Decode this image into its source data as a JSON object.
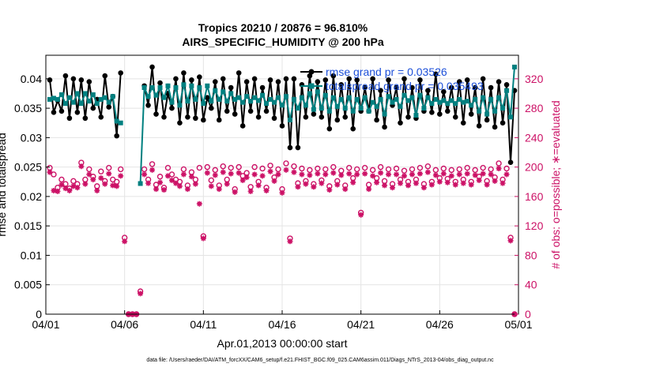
{
  "chart_data": {
    "type": "line",
    "title": "Tropics 20210 / 20876 = 96.810%",
    "subtitle": "AIRS_SPECIFIC_HUMIDITY @ 200 hPa",
    "xlabel": "Apr.01,2013 00:00:00 start",
    "ylabel_left": "rmse and totalspread",
    "ylabel_right": "# of obs: o=possible; ∗=evaluated",
    "footer": "data file: /Users/raeder/DAI/ATM_forcXX/CAM6_setup/f.e21.FHIST_BGC.f09_025.CAM6assim.011/Diags_NTrS_2013-04/obs_diag_output.nc",
    "x_range": [
      0,
      30
    ],
    "ylim_left": [
      0,
      0.044
    ],
    "ylim_right": [
      0,
      352
    ],
    "x_tick_values": [
      0,
      5,
      10,
      15,
      20,
      25,
      30
    ],
    "x_tick_labels": [
      "04/01",
      "04/06",
      "04/11",
      "04/16",
      "04/21",
      "04/26",
      "05/01"
    ],
    "left_tick_values": [
      0,
      0.005,
      0.01,
      0.015,
      0.02,
      0.025,
      0.03,
      0.035,
      0.04
    ],
    "left_tick_labels": [
      "0",
      "0.005",
      "0.01",
      "0.015",
      "0.02",
      "0.025",
      "0.03",
      "0.035",
      "0.04"
    ],
    "right_tick_values": [
      0,
      40,
      80,
      120,
      160,
      200,
      240,
      280,
      320
    ],
    "right_tick_labels": [
      "0",
      "40",
      "80",
      "120",
      "160",
      "200",
      "240",
      "280",
      "320"
    ],
    "grid": true,
    "legend_position": "top-right",
    "x": [
      0.25,
      0.5,
      0.75,
      1,
      1.25,
      1.5,
      1.75,
      2,
      2.25,
      2.5,
      2.75,
      3,
      3.25,
      3.5,
      3.75,
      4,
      4.25,
      4.5,
      4.75,
      5,
      5.25,
      5.5,
      5.75,
      6,
      6.25,
      6.5,
      6.75,
      7,
      7.25,
      7.5,
      7.75,
      8,
      8.25,
      8.5,
      8.75,
      9,
      9.25,
      9.5,
      9.75,
      10,
      10.25,
      10.5,
      10.75,
      11,
      11.25,
      11.5,
      11.75,
      12,
      12.25,
      12.5,
      12.75,
      13,
      13.25,
      13.5,
      13.75,
      14,
      14.25,
      14.5,
      14.75,
      15,
      15.25,
      15.5,
      15.75,
      16,
      16.25,
      16.5,
      16.75,
      17,
      17.25,
      17.5,
      17.75,
      18,
      18.25,
      18.5,
      18.75,
      19,
      19.25,
      19.5,
      19.75,
      20,
      20.25,
      20.5,
      20.75,
      21,
      21.25,
      21.5,
      21.75,
      22,
      22.25,
      22.5,
      22.75,
      23,
      23.25,
      23.5,
      23.75,
      24,
      24.25,
      24.5,
      24.75,
      25,
      25.25,
      25.5,
      25.75,
      26,
      26.25,
      26.5,
      26.75,
      27,
      27.25,
      27.5,
      27.75,
      28,
      28.25,
      28.5,
      28.75,
      29,
      29.25,
      29.5,
      29.75
    ],
    "series": [
      {
        "name": "rmse",
        "legend": "rmse grand pr = 0.03526",
        "color": "#000000",
        "values": [
          0.0398,
          0.0343,
          0.0363,
          0.0345,
          0.0405,
          0.0333,
          0.04,
          0.0343,
          0.0398,
          0.0333,
          0.0395,
          0.035,
          0.0365,
          0.0335,
          0.0405,
          0.0352,
          0.037,
          0.0303,
          0.041,
          null,
          null,
          null,
          null,
          null,
          0.0388,
          0.0355,
          0.042,
          0.034,
          0.0393,
          0.0335,
          0.0375,
          0.035,
          0.04,
          0.0325,
          0.041,
          0.0335,
          0.0398,
          0.0333,
          0.0403,
          0.033,
          0.0368,
          0.035,
          0.0395,
          0.033,
          0.04,
          0.0345,
          0.0385,
          0.034,
          0.041,
          0.032,
          0.0395,
          0.0345,
          0.04,
          0.0335,
          0.0385,
          0.0345,
          0.0398,
          0.0333,
          0.0395,
          0.032,
          0.04,
          0.0283,
          0.04,
          0.0283,
          0.039,
          0.0335,
          0.0405,
          0.034,
          0.0395,
          0.0335,
          0.0398,
          0.0315,
          0.0405,
          0.033,
          0.039,
          0.0335,
          0.04,
          0.0315,
          0.0398,
          0.0345,
          0.0385,
          0.0345,
          0.04,
          0.033,
          0.038,
          0.0318,
          0.0398,
          0.0355,
          0.0385,
          0.0325,
          0.04,
          0.0335,
          0.0385,
          0.0333,
          0.0398,
          0.0345,
          0.038,
          0.0343,
          0.0408,
          0.034,
          0.0378,
          0.0345,
          0.0385,
          0.0335,
          0.0395,
          0.0325,
          0.0398,
          0.034,
          0.0385,
          0.032,
          0.04,
          0.033,
          0.0385,
          0.0318,
          0.0395,
          0.0325,
          0.039,
          0.0258,
          0.038
        ]
      },
      {
        "name": "totalspread",
        "legend": "totalspread grand pr = 0.035493",
        "color": "#008080",
        "values": [
          0.0365,
          0.0367,
          0.0365,
          0.0373,
          0.0358,
          0.0368,
          0.036,
          0.0375,
          0.0358,
          0.0375,
          0.0362,
          0.0373,
          0.0358,
          0.0365,
          0.0368,
          0.036,
          0.037,
          0.0328,
          0.0325,
          null,
          null,
          null,
          null,
          0.0222,
          0.0385,
          0.037,
          0.0385,
          0.0372,
          0.0385,
          0.0368,
          0.0388,
          0.036,
          0.0385,
          0.0355,
          0.039,
          0.0362,
          0.0388,
          0.0365,
          0.0385,
          0.0358,
          0.0388,
          0.0362,
          0.038,
          0.0365,
          0.0378,
          0.0362,
          0.0375,
          0.0365,
          0.0368,
          0.036,
          0.037,
          0.0362,
          0.0368,
          0.0363,
          0.0372,
          0.0358,
          0.0365,
          0.036,
          0.0368,
          0.0355,
          0.037,
          0.033,
          0.0365,
          0.035,
          0.0368,
          0.0355,
          0.0375,
          0.0348,
          0.0378,
          0.035,
          0.0372,
          0.0345,
          0.0368,
          0.0353,
          0.0365,
          0.035,
          0.0368,
          0.0345,
          0.0365,
          0.035,
          0.0368,
          0.0345,
          0.036,
          0.0353,
          0.0365,
          0.034,
          0.037,
          0.036,
          0.0365,
          0.0353,
          0.0372,
          0.0363,
          0.0368,
          0.0338,
          0.0372,
          0.035,
          0.0368,
          0.0358,
          0.0365,
          0.036,
          0.0363,
          0.0358,
          0.0363,
          0.0358,
          0.0365,
          0.036,
          0.0362,
          0.0355,
          0.0365,
          0.0345,
          0.0368,
          0.034,
          0.0365,
          0.0345,
          0.0368,
          0.035,
          0.038,
          0.0335,
          0.042
        ]
      },
      {
        "name": "obs_possible",
        "marker": "o",
        "color": "#cc1166",
        "values": [
          null,
          null,
          null,
          null,
          null,
          null,
          null,
          null,
          null,
          null,
          null,
          null,
          null,
          null,
          null,
          null,
          null,
          null,
          null,
          null,
          null,
          null,
          null,
          null,
          null,
          null,
          null,
          null,
          null,
          null,
          null,
          null,
          null,
          null,
          null,
          null,
          null,
          null,
          null,
          null,
          null,
          null,
          null,
          null,
          null,
          null,
          null,
          null,
          null,
          null,
          null,
          null,
          null,
          null,
          null,
          null,
          null,
          null,
          null,
          null,
          null,
          null,
          null,
          null,
          null,
          null,
          null,
          null,
          null,
          null,
          null,
          null,
          null,
          null,
          null,
          null,
          null,
          null,
          null,
          null,
          null,
          null,
          null,
          null,
          null,
          null,
          null,
          null,
          null,
          null,
          null,
          null,
          null,
          null,
          null,
          null,
          null,
          null,
          null,
          null,
          null,
          null,
          null,
          null,
          null,
          null,
          null,
          null,
          null,
          null,
          null,
          null,
          null,
          null,
          null,
          null,
          null,
          null,
          null
        ],
        "values_note": "possible counts drawn from the same positions as evaluated plus offset; see obs_possible_values",
        "obs_possible_values": [
          199,
          190,
          172,
          183,
          177,
          171,
          181,
          177,
          206,
          183,
          197,
          187,
          174,
          194,
          181,
          199,
          183,
          180,
          197,
          104,
          0,
          0,
          0,
          31,
          197,
          183,
          204,
          176,
          187,
          172,
          199,
          190,
          183,
          180,
          197,
          175,
          193,
          183,
          199,
          106,
          200,
          182,
          196,
          175,
          201,
          183,
          199,
          170,
          200,
          188,
          192,
          173,
          200,
          180,
          198,
          172,
          202,
          186,
          197,
          170,
          205,
          103,
          201,
          178,
          198,
          181,
          196,
          177,
          198,
          182,
          197,
          174,
          200,
          181,
          195,
          175,
          199,
          185,
          197,
          138,
          199,
          176,
          196,
          185,
          200,
          181,
          197,
          177,
          198,
          183,
          195,
          180,
          197,
          183,
          199,
          177,
          201,
          180,
          196,
          185,
          198,
          184,
          196,
          180,
          197,
          183,
          199,
          180,
          196,
          187,
          199,
          181,
          197,
          186,
          205,
          183,
          198,
          104,
          0
        ]
      },
      {
        "name": "obs_evaluated",
        "marker": "*",
        "color": "#cc1166",
        "values": [
          193,
          168,
          167,
          176,
          171,
          168,
          174,
          172,
          201,
          177,
          190,
          183,
          168,
          185,
          177,
          191,
          175,
          174,
          188,
          99,
          0,
          0,
          0,
          28,
          190,
          178,
          196,
          170,
          179,
          169,
          188,
          182,
          178,
          174,
          190,
          170,
          187,
          177,
          150,
          103,
          192,
          174,
          189,
          170,
          193,
          177,
          191,
          166,
          192,
          182,
          186,
          167,
          190,
          175,
          188,
          168,
          194,
          181,
          190,
          165,
          196,
          99,
          193,
          173,
          190,
          177,
          189,
          173,
          191,
          178,
          190,
          169,
          192,
          176,
          189,
          170,
          191,
          179,
          190,
          135,
          191,
          170,
          188,
          179,
          192,
          175,
          190,
          172,
          190,
          178,
          188,
          175,
          190,
          178,
          191,
          172,
          193,
          176,
          189,
          180,
          191,
          179,
          188,
          176,
          190,
          178,
          191,
          176,
          189,
          182,
          191,
          176,
          190,
          181,
          198,
          178,
          190,
          100,
          0
        ]
      }
    ]
  }
}
